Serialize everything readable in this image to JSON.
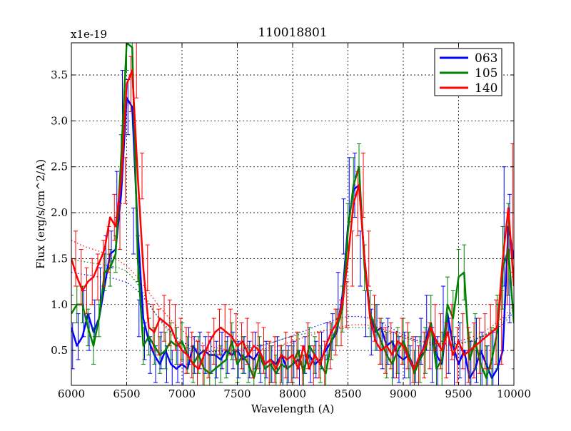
{
  "chart_data": {
    "type": "line",
    "title": "110018801",
    "xlabel": "Wavelength (A)",
    "ylabel": "Flux (erg/s/cm^2/A)",
    "y_multiplier_label": "x1e-19",
    "xlim": [
      6000,
      10000
    ],
    "ylim": [
      0.12,
      3.85
    ],
    "grid": true,
    "legend_position": "top-right",
    "xticks": [
      6000,
      6500,
      7000,
      7500,
      8000,
      8500,
      9000,
      9500,
      10000
    ],
    "xtick_labels": [
      "6000",
      "6500",
      "7000",
      "7500",
      "8000",
      "8500",
      "9000",
      "9500",
      "10000"
    ],
    "yticks": [
      0.5,
      1.0,
      1.5,
      2.0,
      2.5,
      3.0,
      3.5
    ],
    "ytick_labels": [
      "0.5",
      "1.0",
      "1.5",
      "2.0",
      "2.5",
      "3.0",
      "3.5"
    ],
    "x": [
      6000,
      6050,
      6100,
      6150,
      6200,
      6250,
      6300,
      6350,
      6400,
      6450,
      6500,
      6550,
      6600,
      6650,
      6700,
      6750,
      6800,
      6850,
      6900,
      6950,
      7000,
      7050,
      7100,
      7150,
      7200,
      7250,
      7300,
      7350,
      7400,
      7450,
      7500,
      7550,
      7600,
      7650,
      7700,
      7750,
      7800,
      7850,
      7900,
      7950,
      8000,
      8050,
      8100,
      8150,
      8200,
      8250,
      8300,
      8350,
      8400,
      8450,
      8500,
      8550,
      8600,
      8650,
      8700,
      8750,
      8800,
      8850,
      8900,
      8950,
      9000,
      9050,
      9100,
      9150,
      9200,
      9250,
      9300,
      9350,
      9400,
      9450,
      9500,
      9550,
      9600,
      9650,
      9700,
      9750,
      9800,
      9850,
      9900,
      9950,
      10000
    ],
    "series": [
      {
        "name": "063",
        "color": "#0000ff",
        "values": [
          0.75,
          0.55,
          0.65,
          0.9,
          0.7,
          0.85,
          1.2,
          1.55,
          1.6,
          2.2,
          3.25,
          3.15,
          1.8,
          0.85,
          0.6,
          0.45,
          0.35,
          0.5,
          0.35,
          0.3,
          0.35,
          0.3,
          0.55,
          0.45,
          0.5,
          0.45,
          0.45,
          0.4,
          0.5,
          0.45,
          0.5,
          0.4,
          0.45,
          0.4,
          0.5,
          0.35,
          0.4,
          0.35,
          0.45,
          0.3,
          0.35,
          0.4,
          0.3,
          0.45,
          0.35,
          0.4,
          0.5,
          0.6,
          0.7,
          1.1,
          1.85,
          2.25,
          2.3,
          1.5,
          0.9,
          0.7,
          0.75,
          0.55,
          0.6,
          0.45,
          0.4,
          0.45,
          0.3,
          0.4,
          0.6,
          0.8,
          0.45,
          0.35,
          0.9,
          0.55,
          0.35,
          0.5,
          0.2,
          0.3,
          0.5,
          0.35,
          0.2,
          0.3,
          0.5,
          1.85,
          1.5
        ],
        "errors": [
          0.3,
          0.25,
          0.25,
          0.25,
          0.2,
          0.2,
          0.2,
          0.2,
          0.2,
          0.25,
          0.3,
          0.3,
          0.25,
          0.2,
          0.2,
          0.2,
          0.2,
          0.2,
          0.2,
          0.2,
          0.2,
          0.2,
          0.2,
          0.2,
          0.2,
          0.2,
          0.2,
          0.2,
          0.2,
          0.2,
          0.2,
          0.2,
          0.2,
          0.2,
          0.2,
          0.2,
          0.2,
          0.2,
          0.2,
          0.2,
          0.2,
          0.2,
          0.2,
          0.2,
          0.2,
          0.2,
          0.2,
          0.2,
          0.2,
          0.25,
          0.3,
          0.35,
          0.35,
          0.3,
          0.25,
          0.25,
          0.25,
          0.25,
          0.25,
          0.25,
          0.25,
          0.25,
          0.25,
          0.25,
          0.25,
          0.3,
          0.3,
          0.3,
          0.3,
          0.3,
          0.3,
          0.3,
          0.3,
          0.3,
          0.35,
          0.35,
          0.35,
          0.4,
          0.5,
          0.65,
          0.7
        ],
        "continuum": [
          1.35,
          1.34,
          1.33,
          1.32,
          1.31,
          1.3,
          1.3,
          1.29,
          1.28,
          1.26,
          1.24,
          1.2,
          1.15,
          1.08,
          1.0,
          0.92,
          0.84,
          0.77,
          0.7,
          0.64,
          0.6,
          0.56,
          0.53,
          0.51,
          0.5,
          0.49,
          0.49,
          0.49,
          0.49,
          0.5,
          0.51,
          0.52,
          0.53,
          0.54,
          0.56,
          0.57,
          0.58,
          0.6,
          0.62,
          0.64,
          0.66,
          0.69,
          0.71,
          0.73,
          0.76,
          0.78,
          0.8,
          0.82,
          0.84,
          0.86,
          0.87,
          0.87,
          0.87,
          0.86,
          0.85,
          0.83,
          0.8,
          0.77,
          0.74,
          0.7,
          0.67,
          0.64,
          0.62,
          0.6,
          0.59,
          0.58,
          0.57,
          0.57,
          0.57,
          0.57,
          0.58,
          0.59,
          0.6,
          0.62,
          0.64,
          0.67,
          0.7,
          0.74,
          0.79,
          0.85,
          0.92
        ]
      },
      {
        "name": "105",
        "color": "#008000",
        "values": [
          0.9,
          1.0,
          1.0,
          0.75,
          0.55,
          0.85,
          1.35,
          1.4,
          1.55,
          2.6,
          3.85,
          3.8,
          1.5,
          0.55,
          0.65,
          0.55,
          0.45,
          0.5,
          0.6,
          0.55,
          0.6,
          0.45,
          0.35,
          0.45,
          0.3,
          0.25,
          0.3,
          0.35,
          0.4,
          0.6,
          0.35,
          0.45,
          0.35,
          0.2,
          0.45,
          0.3,
          0.35,
          0.25,
          0.35,
          0.3,
          0.35,
          0.5,
          0.25,
          0.55,
          0.45,
          0.35,
          0.25,
          0.6,
          0.75,
          0.95,
          1.8,
          2.3,
          2.5,
          1.4,
          0.9,
          0.75,
          0.6,
          0.45,
          0.35,
          0.5,
          0.6,
          0.45,
          0.25,
          0.4,
          0.5,
          0.8,
          0.3,
          0.4,
          1.0,
          0.85,
          1.3,
          1.35,
          0.4,
          0.6,
          0.35,
          0.2,
          0.4,
          0.7,
          1.4,
          1.6,
          0.8
        ],
        "errors": [
          0.2,
          0.2,
          0.2,
          0.2,
          0.2,
          0.2,
          0.2,
          0.2,
          0.2,
          0.25,
          0.3,
          0.3,
          0.25,
          0.2,
          0.2,
          0.2,
          0.2,
          0.2,
          0.2,
          0.2,
          0.2,
          0.2,
          0.2,
          0.2,
          0.2,
          0.2,
          0.2,
          0.2,
          0.2,
          0.2,
          0.2,
          0.2,
          0.2,
          0.2,
          0.2,
          0.2,
          0.2,
          0.2,
          0.2,
          0.2,
          0.2,
          0.2,
          0.2,
          0.2,
          0.2,
          0.2,
          0.2,
          0.2,
          0.2,
          0.25,
          0.3,
          0.3,
          0.25,
          0.25,
          0.25,
          0.25,
          0.25,
          0.25,
          0.25,
          0.25,
          0.25,
          0.25,
          0.25,
          0.25,
          0.25,
          0.3,
          0.3,
          0.3,
          0.3,
          0.3,
          0.3,
          0.3,
          0.3,
          0.3,
          0.3,
          0.35,
          0.35,
          0.4,
          0.45,
          0.5,
          0.5
        ],
        "continuum": [
          1.5,
          1.48,
          1.47,
          1.46,
          1.45,
          1.44,
          1.43,
          1.42,
          1.41,
          1.39,
          1.36,
          1.3,
          1.22,
          1.12,
          1.02,
          0.92,
          0.83,
          0.75,
          0.68,
          0.62,
          0.57,
          0.53,
          0.5,
          0.48,
          0.47,
          0.46,
          0.46,
          0.46,
          0.47,
          0.48,
          0.49,
          0.5,
          0.51,
          0.53,
          0.55,
          0.56,
          0.58,
          0.6,
          0.62,
          0.64,
          0.65,
          0.67,
          0.68,
          0.69,
          0.7,
          0.71,
          0.72,
          0.73,
          0.74,
          0.74,
          0.75,
          0.75,
          0.75,
          0.75,
          0.74,
          0.73,
          0.72,
          0.7,
          0.68,
          0.66,
          0.64,
          0.62,
          0.6,
          0.58,
          0.57,
          0.56,
          0.55,
          0.55,
          0.55,
          0.56,
          0.57,
          0.58,
          0.6,
          0.62,
          0.65,
          0.68,
          0.72,
          0.77,
          0.82,
          0.88,
          0.95
        ]
      },
      {
        "name": "140",
        "color": "#ff0000",
        "values": [
          1.5,
          1.3,
          1.15,
          1.25,
          1.3,
          1.45,
          1.6,
          1.95,
          1.85,
          2.35,
          3.4,
          3.55,
          2.4,
          1.4,
          0.75,
          0.7,
          0.85,
          0.8,
          0.75,
          0.6,
          0.5,
          0.45,
          0.35,
          0.3,
          0.45,
          0.6,
          0.7,
          0.75,
          0.7,
          0.65,
          0.55,
          0.6,
          0.45,
          0.55,
          0.5,
          0.35,
          0.4,
          0.3,
          0.45,
          0.4,
          0.45,
          0.3,
          0.55,
          0.3,
          0.45,
          0.35,
          0.55,
          0.7,
          0.8,
          1.0,
          1.5,
          2.1,
          2.3,
          1.5,
          0.85,
          0.6,
          0.5,
          0.55,
          0.45,
          0.6,
          0.55,
          0.4,
          0.3,
          0.45,
          0.55,
          0.75,
          0.6,
          0.5,
          0.7,
          0.45,
          0.6,
          0.45,
          0.5,
          0.55,
          0.6,
          0.65,
          0.7,
          0.75,
          1.5,
          2.05,
          1.2
        ],
        "errors": [
          0.3,
          0.3,
          0.25,
          0.25,
          0.25,
          0.25,
          0.25,
          0.25,
          0.25,
          0.25,
          0.3,
          0.3,
          0.25,
          0.25,
          0.25,
          0.25,
          0.25,
          0.25,
          0.25,
          0.25,
          0.25,
          0.25,
          0.25,
          0.25,
          0.25,
          0.25,
          0.25,
          0.25,
          0.25,
          0.25,
          0.25,
          0.25,
          0.25,
          0.25,
          0.25,
          0.25,
          0.25,
          0.25,
          0.25,
          0.25,
          0.25,
          0.25,
          0.25,
          0.25,
          0.25,
          0.25,
          0.25,
          0.25,
          0.25,
          0.25,
          0.3,
          0.35,
          0.35,
          0.3,
          0.25,
          0.25,
          0.25,
          0.25,
          0.25,
          0.25,
          0.25,
          0.25,
          0.25,
          0.25,
          0.25,
          0.25,
          0.3,
          0.3,
          0.3,
          0.3,
          0.3,
          0.3,
          0.3,
          0.3,
          0.3,
          0.35,
          0.35,
          0.4,
          0.5,
          0.7,
          0.8
        ],
        "continuum": [
          1.7,
          1.67,
          1.64,
          1.62,
          1.6,
          1.58,
          1.56,
          1.54,
          1.5,
          1.46,
          1.42,
          1.36,
          1.29,
          1.21,
          1.13,
          1.05,
          0.97,
          0.9,
          0.83,
          0.77,
          0.72,
          0.67,
          0.63,
          0.6,
          0.57,
          0.55,
          0.53,
          0.52,
          0.51,
          0.5,
          0.5,
          0.5,
          0.5,
          0.5,
          0.51,
          0.52,
          0.53,
          0.54,
          0.56,
          0.58,
          0.6,
          0.62,
          0.64,
          0.66,
          0.68,
          0.7,
          0.72,
          0.73,
          0.75,
          0.76,
          0.77,
          0.78,
          0.78,
          0.78,
          0.77,
          0.76,
          0.74,
          0.72,
          0.7,
          0.67,
          0.65,
          0.63,
          0.61,
          0.6,
          0.59,
          0.58,
          0.58,
          0.58,
          0.58,
          0.59,
          0.6,
          0.62,
          0.64,
          0.66,
          0.69,
          0.72,
          0.76,
          0.81,
          0.86,
          0.92,
          0.99
        ]
      }
    ]
  }
}
